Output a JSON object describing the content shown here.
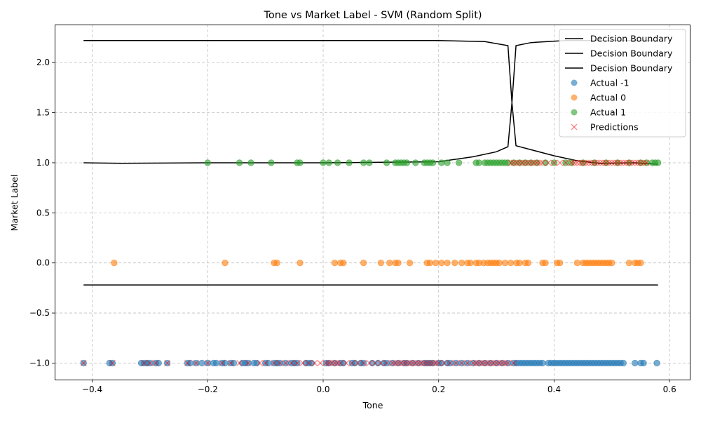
{
  "chart_data": {
    "type": "scatter",
    "title": "Tone vs Market Label - SVM (Random Split)",
    "xlabel": "Tone",
    "ylabel": "Market Label",
    "xlim": [
      -0.465,
      0.635
    ],
    "ylim": [
      -1.165,
      2.38
    ],
    "xticks": [
      -0.4,
      -0.2,
      0.0,
      0.2,
      0.4,
      0.6
    ],
    "xtick_labels": [
      "−0.4",
      "−0.2",
      "0.0",
      "0.2",
      "0.4",
      "0.6"
    ],
    "yticks": [
      -1.0,
      -0.5,
      0.0,
      0.5,
      1.0,
      1.5,
      2.0
    ],
    "ytick_labels": [
      "−1.0",
      "−0.5",
      "0.0",
      "0.5",
      "1.0",
      "1.5",
      "2.0"
    ],
    "grid": true,
    "legend_position": "top-right",
    "legend": [
      {
        "label": "Decision Boundary",
        "kind": "line",
        "color": "#000000"
      },
      {
        "label": "Decision Boundary",
        "kind": "line",
        "color": "#000000"
      },
      {
        "label": "Decision Boundary",
        "kind": "line",
        "color": "#000000"
      },
      {
        "label": "Actual -1",
        "kind": "circle",
        "color": "#1f77b4"
      },
      {
        "label": "Actual 0",
        "kind": "circle",
        "color": "#ff7f0e"
      },
      {
        "label": "Actual 1",
        "kind": "circle",
        "color": "#2ca02c"
      },
      {
        "label": "Predictions",
        "kind": "x",
        "color": "#ff0000"
      }
    ],
    "boundaries": [
      {
        "name": "Decision Boundary",
        "points": [
          [
            -0.415,
            2.22
          ],
          [
            -0.2,
            2.22
          ],
          [
            0.0,
            2.22
          ],
          [
            0.2,
            2.22
          ],
          [
            0.28,
            2.21
          ],
          [
            0.32,
            2.17
          ],
          [
            0.327,
            1.6
          ],
          [
            0.334,
            2.17
          ],
          [
            0.36,
            2.2
          ],
          [
            0.42,
            2.22
          ],
          [
            0.58,
            2.22
          ]
        ]
      },
      {
        "name": "Decision Boundary",
        "points": [
          [
            -0.415,
            1.0
          ],
          [
            -0.35,
            0.995
          ],
          [
            -0.2,
            1.0
          ],
          [
            0.0,
            1.0
          ],
          [
            0.2,
            1.01
          ],
          [
            0.26,
            1.06
          ],
          [
            0.3,
            1.11
          ],
          [
            0.32,
            1.16
          ],
          [
            0.327,
            1.6
          ],
          [
            0.334,
            1.17
          ],
          [
            0.36,
            1.13
          ],
          [
            0.4,
            1.07
          ],
          [
            0.44,
            1.02
          ],
          [
            0.48,
            0.995
          ],
          [
            0.54,
            1.0
          ],
          [
            0.58,
            0.985
          ]
        ]
      },
      {
        "name": "Decision Boundary",
        "points": [
          [
            -0.415,
            -0.22
          ],
          [
            0.0,
            -0.22
          ],
          [
            0.58,
            -0.22
          ]
        ]
      }
    ],
    "series": [
      {
        "name": "Actual -1",
        "y": -1,
        "color": "#1f77b4",
        "x": [
          -0.415,
          -0.37,
          -0.365,
          -0.315,
          -0.31,
          -0.305,
          -0.3,
          -0.29,
          -0.285,
          -0.27,
          -0.235,
          -0.23,
          -0.22,
          -0.21,
          -0.2,
          -0.19,
          -0.185,
          -0.175,
          -0.17,
          -0.16,
          -0.155,
          -0.14,
          -0.135,
          -0.13,
          -0.12,
          -0.115,
          -0.1,
          -0.095,
          -0.085,
          -0.08,
          -0.075,
          -0.065,
          -0.055,
          -0.05,
          -0.045,
          -0.03,
          -0.025,
          -0.02,
          0.005,
          0.01,
          0.02,
          0.03,
          0.035,
          0.05,
          0.055,
          0.065,
          0.07,
          0.085,
          0.095,
          0.105,
          0.11,
          0.12,
          0.13,
          0.14,
          0.145,
          0.155,
          0.165,
          0.175,
          0.18,
          0.185,
          0.19,
          0.2,
          0.205,
          0.215,
          0.22,
          0.23,
          0.24,
          0.25,
          0.26,
          0.27,
          0.28,
          0.29,
          0.3,
          0.31,
          0.32,
          0.33,
          0.335,
          0.34,
          0.345,
          0.35,
          0.355,
          0.36,
          0.365,
          0.37,
          0.375,
          0.38,
          0.39,
          0.395,
          0.4,
          0.405,
          0.41,
          0.415,
          0.42,
          0.425,
          0.43,
          0.435,
          0.44,
          0.445,
          0.45,
          0.455,
          0.46,
          0.465,
          0.47,
          0.475,
          0.48,
          0.485,
          0.49,
          0.495,
          0.5,
          0.505,
          0.51,
          0.515,
          0.52,
          0.54,
          0.55,
          0.555,
          0.578
        ]
      },
      {
        "name": "Actual 0",
        "y": 0,
        "color": "#ff7f0e",
        "x": [
          -0.362,
          -0.17,
          -0.085,
          -0.08,
          -0.04,
          0.02,
          0.03,
          0.035,
          0.07,
          0.1,
          0.115,
          0.125,
          0.13,
          0.15,
          0.18,
          0.185,
          0.195,
          0.205,
          0.215,
          0.228,
          0.24,
          0.25,
          0.255,
          0.265,
          0.27,
          0.278,
          0.285,
          0.29,
          0.295,
          0.3,
          0.305,
          0.315,
          0.325,
          0.335,
          0.34,
          0.35,
          0.355,
          0.38,
          0.385,
          0.405,
          0.41,
          0.44,
          0.45,
          0.455,
          0.46,
          0.465,
          0.47,
          0.475,
          0.48,
          0.485,
          0.49,
          0.495,
          0.5,
          0.53,
          0.54,
          0.545,
          0.55
        ]
      },
      {
        "name": "Actual 1",
        "y": 1,
        "color": "#2ca02c",
        "x": [
          -0.2,
          -0.145,
          -0.125,
          -0.09,
          -0.045,
          -0.04,
          0.0,
          0.01,
          0.025,
          0.045,
          0.07,
          0.08,
          0.11,
          0.125,
          0.13,
          0.135,
          0.14,
          0.145,
          0.16,
          0.175,
          0.18,
          0.185,
          0.19,
          0.205,
          0.215,
          0.235,
          0.265,
          0.27,
          0.28,
          0.285,
          0.29,
          0.295,
          0.3,
          0.305,
          0.31,
          0.315,
          0.32,
          0.33,
          0.34,
          0.35,
          0.36,
          0.37,
          0.385,
          0.4,
          0.42,
          0.43,
          0.45,
          0.47,
          0.49,
          0.51,
          0.53,
          0.55,
          0.56,
          0.57,
          0.575,
          0.58
        ]
      },
      {
        "name": "Predictions",
        "color": "#ff0000",
        "points": [
          {
            "y": -1,
            "x": [
              -0.415,
              -0.365,
              -0.31,
              -0.3,
              -0.29,
              -0.27,
              -0.235,
              -0.22,
              -0.2,
              -0.175,
              -0.16,
              -0.145,
              -0.13,
              -0.11,
              -0.1,
              -0.085,
              -0.075,
              -0.065,
              -0.055,
              -0.045,
              -0.035,
              -0.025,
              -0.015,
              -0.005,
              0.005,
              0.01,
              0.015,
              0.02,
              0.025,
              0.03,
              0.04,
              0.05,
              0.06,
              0.07,
              0.08,
              0.09,
              0.1,
              0.11,
              0.12,
              0.125,
              0.13,
              0.135,
              0.14,
              0.145,
              0.15,
              0.155,
              0.16,
              0.165,
              0.17,
              0.175,
              0.18,
              0.185,
              0.19,
              0.195,
              0.2,
              0.21,
              0.22,
              0.23,
              0.24,
              0.25,
              0.26,
              0.265,
              0.27,
              0.275,
              0.28,
              0.285,
              0.29,
              0.295,
              0.3,
              0.305,
              0.31,
              0.315,
              0.32,
              0.33
            ]
          },
          {
            "y": 1,
            "x": [
              0.325,
              0.33,
              0.335,
              0.34,
              0.345,
              0.35,
              0.355,
              0.36,
              0.365,
              0.37,
              0.375,
              0.38,
              0.39,
              0.4,
              0.41,
              0.42,
              0.43,
              0.435,
              0.44,
              0.445,
              0.45,
              0.455,
              0.46,
              0.465,
              0.47,
              0.475,
              0.48,
              0.485,
              0.49,
              0.495,
              0.5,
              0.505,
              0.51,
              0.515,
              0.52,
              0.525,
              0.53,
              0.535,
              0.54,
              0.545,
              0.55,
              0.555,
              0.56
            ]
          }
        ]
      }
    ]
  }
}
